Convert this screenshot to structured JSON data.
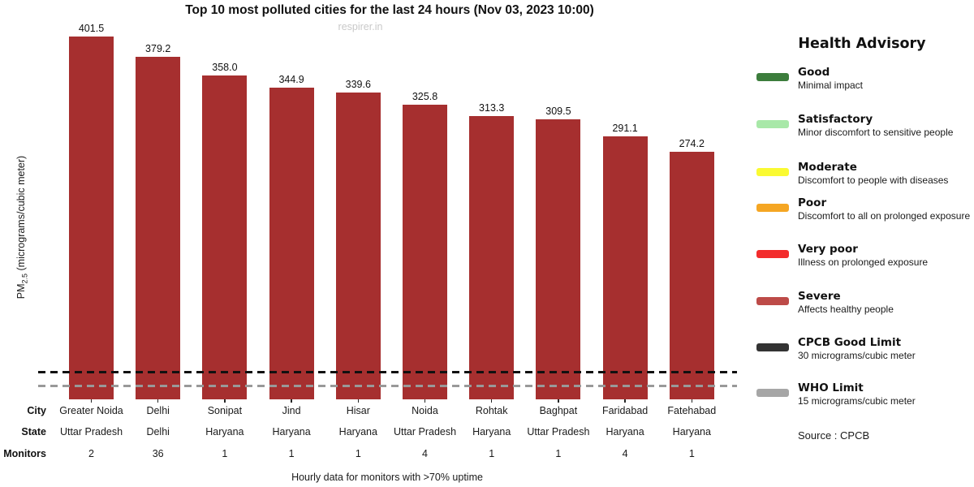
{
  "title": "Top 10 most polluted cities for the last 24 hours (Nov 03, 2023 10:00)",
  "watermark": "respirer.in",
  "ylabel": {
    "prefix": "PM",
    "sub": "2.5",
    "suffix": " (micrograms/cubic meter)"
  },
  "footer": "Hourly data for monitors with >70% uptime",
  "table": {
    "row_labels": [
      "City",
      "State",
      "Monitors"
    ]
  },
  "chart_data": {
    "type": "bar",
    "title": "Top 10 most polluted cities for the last 24 hours (Nov 03, 2023 10:00)",
    "ylabel": "PM2.5 (micrograms/cubic meter)",
    "ylim": [
      0,
      406
    ],
    "grid": false,
    "bar_color": "#A62F2F",
    "categories": [
      "Greater Noida",
      "Delhi",
      "Sonipat",
      "Jind",
      "Hisar",
      "Noida",
      "Rohtak",
      "Baghpat",
      "Faridabad",
      "Fatehabad"
    ],
    "values": [
      401.5,
      379.2,
      358.0,
      344.9,
      339.6,
      325.8,
      313.3,
      309.5,
      291.1,
      274.2
    ],
    "states": [
      "Uttar Pradesh",
      "Delhi",
      "Haryana",
      "Haryana",
      "Haryana",
      "Uttar Pradesh",
      "Haryana",
      "Uttar Pradesh",
      "Haryana",
      "Haryana"
    ],
    "monitors": [
      2,
      36,
      1,
      1,
      1,
      4,
      1,
      1,
      4,
      1
    ],
    "reference_lines": [
      {
        "name": "CPCB Good Limit",
        "value": 30,
        "color": "#111111",
        "style": "dashed"
      },
      {
        "name": "WHO Limit",
        "value": 15,
        "color": "#999999",
        "style": "dashed"
      }
    ]
  },
  "legend": {
    "title": "Health Advisory",
    "items": [
      {
        "name": "Good",
        "desc": "Minimal impact",
        "color": "#3C7D3C"
      },
      {
        "name": "Satisfactory",
        "desc": "Minor discomfort to sensitive people",
        "color": "#A8E8A8"
      },
      {
        "name": "Moderate",
        "desc": "Discomfort to people with diseases",
        "color": "#FAFA32"
      },
      {
        "name": "Poor",
        "desc": "Discomfort to all on prolonged exposure",
        "color": "#F5A623"
      },
      {
        "name": "Very poor",
        "desc": "Illness on prolonged exposure",
        "color": "#F32C2C"
      },
      {
        "name": "Severe",
        "desc": "Affects healthy people",
        "color": "#BD4B48"
      },
      {
        "name": "CPCB Good Limit",
        "desc": "30 micrograms/cubic meter",
        "color": "#333333"
      },
      {
        "name": "WHO Limit",
        "desc": "15 micrograms/cubic meter",
        "color": "#A6A6A6"
      }
    ],
    "source": "Source : CPCB"
  }
}
